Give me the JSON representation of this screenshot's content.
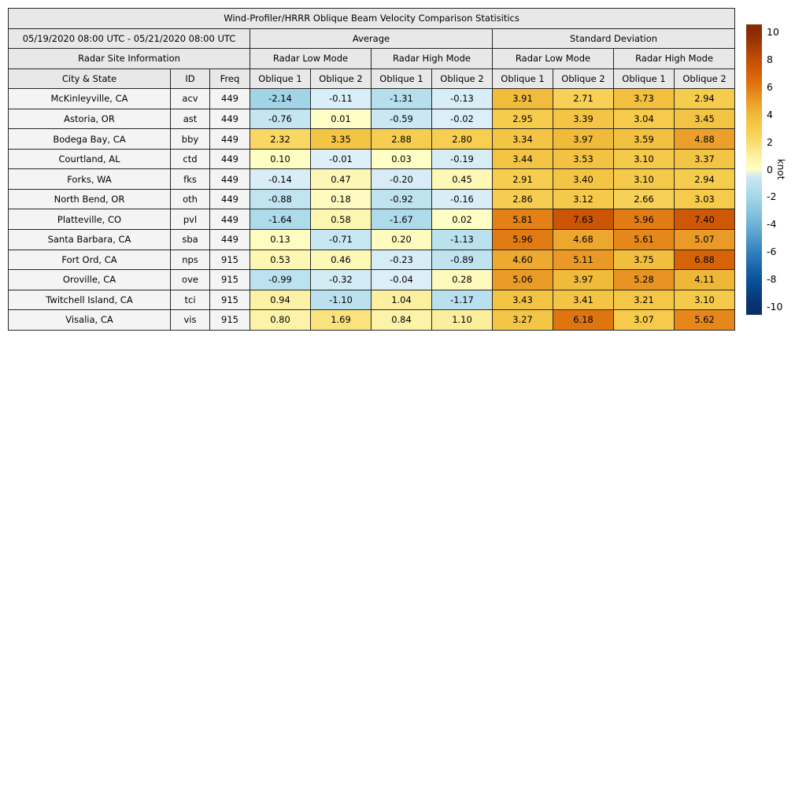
{
  "chart_data": {
    "type": "heatmap",
    "title": "Wind-Profiler/HRRR Oblique Beam Velocity Comparison Statisitics",
    "period": "05/19/2020 08:00 UTC - 05/21/2020 08:00 UTC",
    "sections": {
      "average": "Average",
      "standard_deviation": "Standard Deviation",
      "site_info": "Radar Site Information",
      "low_mode": "Radar Low Mode",
      "high_mode": "Radar High Mode"
    },
    "columns": {
      "city": "City & State",
      "id": "ID",
      "freq": "Freq",
      "oblique1": "Oblique 1",
      "oblique2": "Oblique 2"
    },
    "rows": [
      {
        "city": "McKinleyville, CA",
        "id": "acv",
        "freq": "449",
        "values": [
          "-2.14",
          "-0.11",
          "-1.31",
          "-0.13",
          "3.91",
          "2.71",
          "3.73",
          "2.94"
        ]
      },
      {
        "city": "Astoria, OR",
        "id": "ast",
        "freq": "449",
        "values": [
          "-0.76",
          "0.01",
          "-0.59",
          "-0.02",
          "2.95",
          "3.39",
          "3.04",
          "3.45"
        ]
      },
      {
        "city": "Bodega Bay, CA",
        "id": "bby",
        "freq": "449",
        "values": [
          "2.32",
          "3.35",
          "2.88",
          "2.80",
          "3.34",
          "3.97",
          "3.59",
          "4.88"
        ]
      },
      {
        "city": "Courtland, AL",
        "id": "ctd",
        "freq": "449",
        "values": [
          "0.10",
          "-0.01",
          "0.03",
          "-0.19",
          "3.44",
          "3.53",
          "3.10",
          "3.37"
        ]
      },
      {
        "city": "Forks, WA",
        "id": "fks",
        "freq": "449",
        "values": [
          "-0.14",
          "0.47",
          "-0.20",
          "0.45",
          "2.91",
          "3.40",
          "3.10",
          "2.94"
        ]
      },
      {
        "city": "North Bend, OR",
        "id": "oth",
        "freq": "449",
        "values": [
          "-0.88",
          "0.18",
          "-0.92",
          "-0.16",
          "2.86",
          "3.12",
          "2.66",
          "3.03"
        ]
      },
      {
        "city": "Platteville, CO",
        "id": "pvl",
        "freq": "449",
        "values": [
          "-1.64",
          "0.58",
          "-1.67",
          "0.02",
          "5.81",
          "7.63",
          "5.96",
          "7.40"
        ]
      },
      {
        "city": "Santa Barbara, CA",
        "id": "sba",
        "freq": "449",
        "values": [
          "0.13",
          "-0.71",
          "0.20",
          "-1.13",
          "5.96",
          "4.68",
          "5.61",
          "5.07"
        ]
      },
      {
        "city": "Fort Ord, CA",
        "id": "nps",
        "freq": "915",
        "values": [
          "0.53",
          "0.46",
          "-0.23",
          "-0.89",
          "4.60",
          "5.11",
          "3.75",
          "6.88"
        ]
      },
      {
        "city": "Oroville, CA",
        "id": "ove",
        "freq": "915",
        "values": [
          "-0.99",
          "-0.32",
          "-0.04",
          "0.28",
          "5.06",
          "3.97",
          "5.28",
          "4.11"
        ]
      },
      {
        "city": "Twitchell Island, CA",
        "id": "tci",
        "freq": "915",
        "values": [
          "0.94",
          "-1.10",
          "1.04",
          "-1.17",
          "3.43",
          "3.41",
          "3.21",
          "3.10"
        ]
      },
      {
        "city": "Visalia, CA",
        "id": "vis",
        "freq": "915",
        "values": [
          "0.80",
          "1.69",
          "0.84",
          "1.10",
          "3.27",
          "6.18",
          "3.07",
          "5.62"
        ]
      }
    ],
    "colorbar": {
      "label": "knot",
      "ticks": [
        "10",
        "8",
        "6",
        "4",
        "2",
        "0",
        "-2",
        "-4",
        "-6",
        "-8",
        "-10"
      ],
      "min": -10,
      "max": 10
    },
    "colormap": {
      "stops_negative": [
        [
          -10,
          "#08306b"
        ],
        [
          -8,
          "#0a539c"
        ],
        [
          -6,
          "#3181bd"
        ],
        [
          -4,
          "#6fb2d8"
        ],
        [
          -2,
          "#a5d7e7"
        ],
        [
          -1,
          "#bde2ef"
        ],
        [
          0,
          "#ddeff8"
        ]
      ],
      "stops_positive": [
        [
          0,
          "#fefec6"
        ],
        [
          1,
          "#fcf0a2"
        ],
        [
          2,
          "#f9dc6e"
        ],
        [
          3,
          "#f6cb4b"
        ],
        [
          4,
          "#f0ba3a"
        ],
        [
          5,
          "#eb9d29"
        ],
        [
          6,
          "#e17a12"
        ],
        [
          7,
          "#d66008"
        ],
        [
          8,
          "#c44d04"
        ],
        [
          9,
          "#a63b05"
        ],
        [
          10,
          "#8a2b06"
        ]
      ]
    },
    "colors": {
      "header_bg": "#e8e8e8",
      "row_header_bg": "#f4f4f4",
      "border": "#262626"
    }
  }
}
